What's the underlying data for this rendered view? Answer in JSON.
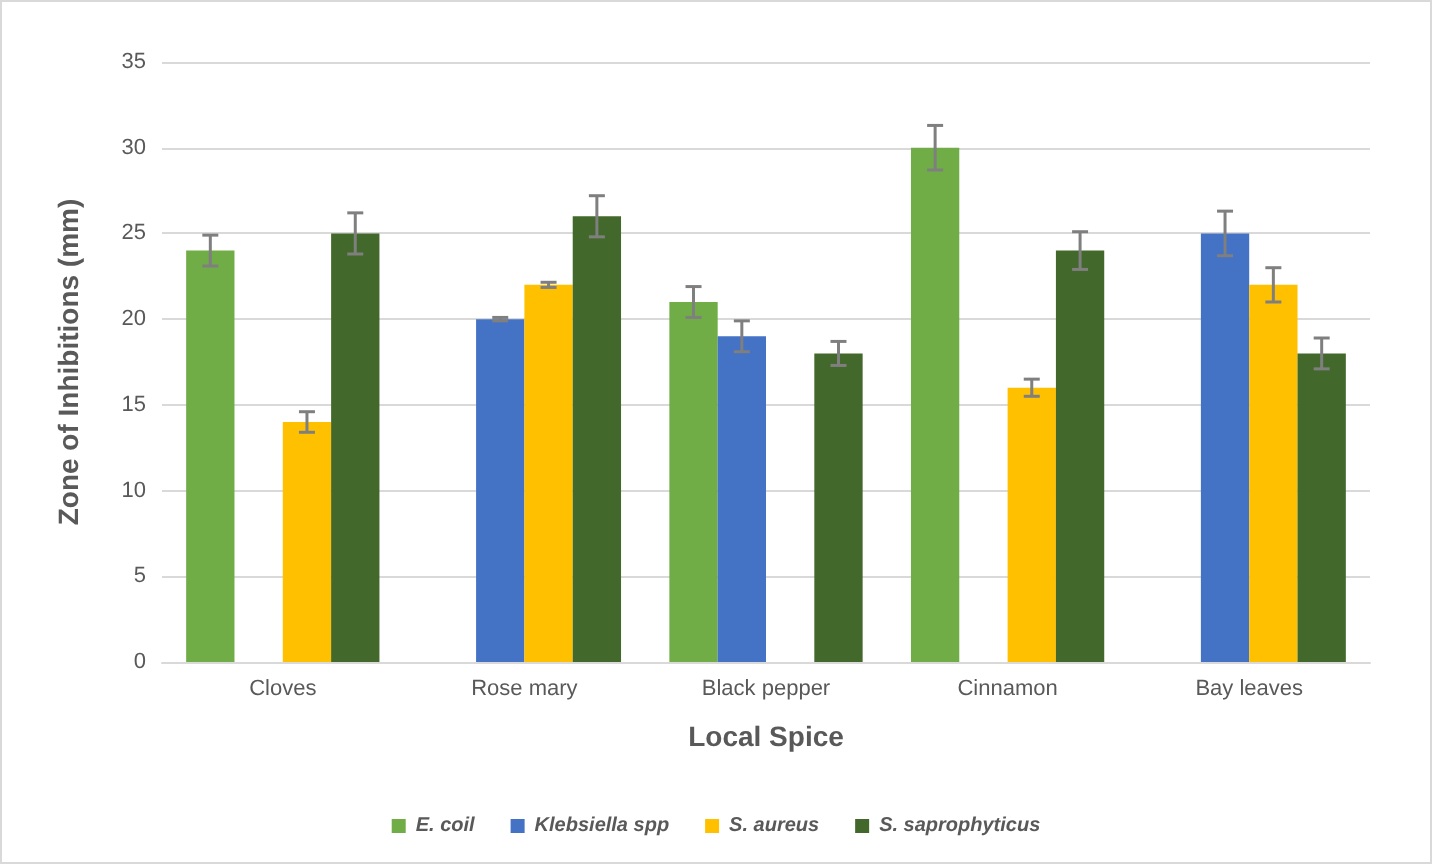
{
  "chart_data": {
    "type": "bar",
    "xlabel": "Local Spice",
    "ylabel": "Zone of Inhibitions (mm)",
    "categories": [
      "Cloves",
      "Rose mary",
      "Black pepper",
      "Cinnamon",
      "Bay leaves"
    ],
    "series": [
      {
        "name": "E. coil",
        "color": "#70ad47",
        "values": [
          24,
          null,
          21,
          30,
          null
        ],
        "errors": [
          0.9,
          null,
          0.9,
          1.3,
          null
        ]
      },
      {
        "name": "Klebsiella spp",
        "color": "#4472c4",
        "values": [
          null,
          20,
          19,
          null,
          25
        ],
        "errors": [
          null,
          0.1,
          0.9,
          null,
          1.3
        ]
      },
      {
        "name": "S. aureus",
        "color": "#ffc000",
        "values": [
          14,
          22,
          null,
          16,
          22
        ],
        "errors": [
          0.6,
          0.15,
          null,
          0.5,
          1.0
        ]
      },
      {
        "name": "S. saprophyticus",
        "color": "#43682b",
        "values": [
          25,
          26,
          18,
          24,
          18
        ],
        "errors": [
          1.2,
          1.2,
          0.7,
          1.1,
          0.9
        ]
      }
    ],
    "ylim": [
      0,
      35
    ],
    "yticks": [
      0,
      5,
      10,
      15,
      20,
      25,
      30,
      35
    ],
    "grid": "y",
    "legend": "bottom"
  }
}
